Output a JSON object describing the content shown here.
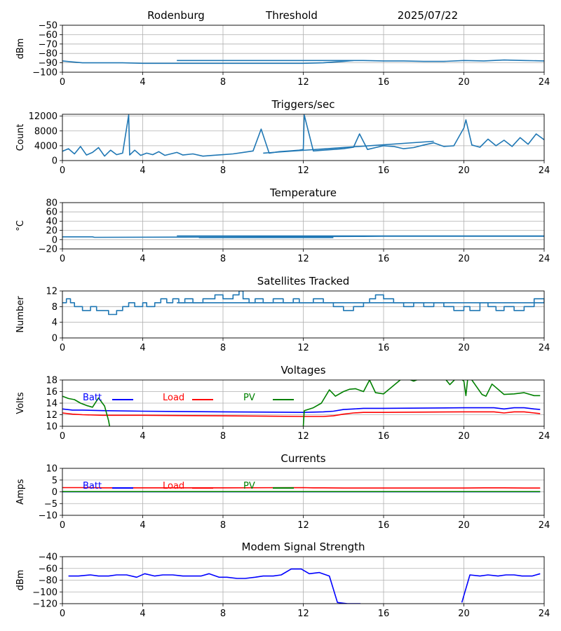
{
  "header": {
    "station": "Rodenburg",
    "mode": "Threshold",
    "date": "2025/07/22"
  },
  "chart_data": [
    {
      "id": "threshold",
      "type": "line",
      "title": "",
      "xlabel": "",
      "ylabel": "dBm",
      "xlim": [
        0,
        24
      ],
      "ylim": [
        -100,
        -50
      ],
      "grid": true,
      "xticks": [
        "0",
        "4",
        "8",
        "12",
        "16",
        "20",
        "24"
      ],
      "yticks": [
        "−100",
        "−90",
        "−80",
        "−70",
        "−60",
        "−50"
      ],
      "series": [
        {
          "color": "#1f77b4",
          "x": [
            0,
            0.5,
            1,
            2,
            3,
            4,
            5,
            6,
            7,
            8,
            9,
            10,
            11,
            12,
            13,
            14,
            14.5,
            15,
            16,
            17,
            18,
            19,
            20,
            21,
            22,
            23,
            24
          ],
          "y": [
            -88,
            -89,
            -90,
            -90,
            -90,
            -90.5,
            -90.5,
            -90.5,
            -90.5,
            -90.5,
            -90.5,
            -90.5,
            -90.5,
            -90.5,
            -90,
            -88.5,
            -87.5,
            -87.5,
            -88,
            -88,
            -88.5,
            -88.5,
            -87.5,
            -88,
            -87,
            -87.5,
            -88
          ]
        },
        {
          "color": "#1f77b4",
          "x": [
            5.7,
            14.5
          ],
          "y": [
            -87.5,
            -87.5
          ]
        }
      ]
    },
    {
      "id": "triggers",
      "type": "line",
      "title": "Triggers/sec",
      "xlabel": "",
      "ylabel": "Count",
      "xlim": [
        0,
        24
      ],
      "ylim": [
        0,
        12500
      ],
      "grid": true,
      "xticks": [
        "0",
        "4",
        "8",
        "12",
        "16",
        "20",
        "24"
      ],
      "yticks": [
        "0",
        "4000",
        "8000",
        "12000"
      ],
      "series": [
        {
          "color": "#1f77b4",
          "x": [
            0,
            0.3,
            0.6,
            0.9,
            1.2,
            1.5,
            1.8,
            2.1,
            2.4,
            2.7,
            3.0,
            3.3,
            3.35,
            3.6,
            3.9,
            4.2,
            4.5,
            4.8,
            5.1,
            5.4,
            5.7,
            6.0,
            6.5,
            7.0,
            7.5,
            8.0,
            8.5,
            9.0,
            9.5,
            9.9,
            10.3,
            10.8,
            11.3,
            11.8,
            12.0,
            12.05,
            12.5,
            13.0,
            13.5,
            14.0,
            14.5,
            14.8,
            15.2,
            15.6,
            16.0,
            16.5,
            17.0,
            17.5,
            18.0,
            18.5,
            19.0,
            19.5,
            20.0,
            20.1,
            20.4,
            20.8,
            21.2,
            21.6,
            22.0,
            22.4,
            22.8,
            23.2,
            23.6,
            24
          ],
          "y": [
            2500,
            3200,
            1800,
            3800,
            1500,
            2200,
            3500,
            1200,
            2800,
            1600,
            2000,
            12300,
            1500,
            2800,
            1400,
            2000,
            1600,
            2400,
            1400,
            1800,
            2200,
            1500,
            1800,
            1200,
            1400,
            1600,
            1800,
            2200,
            2600,
            8500,
            2000,
            2400,
            2600,
            2800,
            3000,
            12300,
            2600,
            2800,
            3000,
            3200,
            3600,
            7200,
            3000,
            3500,
            4000,
            3800,
            3200,
            3500,
            4200,
            4800,
            3800,
            4000,
            8800,
            11000,
            4200,
            3600,
            5800,
            4000,
            5500,
            3800,
            6200,
            4400,
            7200,
            5600
          ]
        },
        {
          "color": "#1f77b4",
          "x": [
            10,
            18.5
          ],
          "y": [
            2000,
            5200
          ]
        }
      ]
    },
    {
      "id": "temperature",
      "type": "line",
      "title": "Temperature",
      "xlabel": "",
      "ylabel": "°C",
      "xlim": [
        0,
        24
      ],
      "ylim": [
        -20,
        80
      ],
      "grid": true,
      "xticks": [
        "0",
        "4",
        "8",
        "12",
        "16",
        "20",
        "24"
      ],
      "yticks": [
        "−20",
        "0",
        "20",
        "40",
        "60",
        "80"
      ],
      "series": [
        {
          "color": "#1f77b4",
          "x": [
            0,
            1.5,
            1.6,
            6,
            10,
            12,
            15,
            16,
            20,
            24
          ],
          "y": [
            6,
            6,
            5,
            5.5,
            6,
            6.5,
            7,
            7.5,
            7.5,
            7.5
          ]
        },
        {
          "color": "#1f77b4",
          "x": [
            5.7,
            24
          ],
          "y": [
            8,
            8
          ]
        },
        {
          "color": "#1f77b4",
          "x": [
            6.8,
            13.5
          ],
          "y": [
            4.5,
            4.5
          ]
        }
      ]
    },
    {
      "id": "satellites",
      "type": "line",
      "title": "Satellites Tracked",
      "xlabel": "",
      "ylabel": "Number",
      "xlim": [
        0,
        24
      ],
      "ylim": [
        0,
        12
      ],
      "grid": true,
      "xticks": [
        "0",
        "4",
        "8",
        "12",
        "16",
        "20",
        "24"
      ],
      "yticks": [
        "0",
        "4",
        "8",
        "12"
      ],
      "series": [
        {
          "color": "#1f77b4",
          "step": true,
          "x": [
            0,
            0.2,
            0.4,
            0.6,
            1.0,
            1.4,
            1.7,
            2.0,
            2.3,
            2.7,
            3.0,
            3.3,
            3.6,
            3.9,
            4.0,
            4.2,
            4.6,
            4.9,
            5.2,
            5.5,
            5.8,
            6.1,
            6.5,
            7.0,
            7.6,
            8.0,
            8.5,
            8.8,
            9.0,
            9.3,
            9.6,
            10.0,
            10.5,
            11.0,
            11.5,
            11.8,
            12.5,
            13.0,
            13.5,
            14.0,
            14.5,
            15.0,
            15.3,
            15.6,
            16.0,
            16.5,
            17.0,
            17.5,
            18.0,
            18.5,
            19.0,
            19.5,
            20.0,
            20.3,
            20.8,
            21.2,
            21.6,
            22.0,
            22.5,
            23.0,
            23.5,
            24
          ],
          "y": [
            9,
            10,
            9,
            8,
            7,
            8,
            7,
            7,
            6,
            7,
            8,
            9,
            8,
            8,
            9,
            8,
            9,
            10,
            9,
            10,
            9,
            10,
            9,
            10,
            11,
            10,
            11,
            12,
            10,
            9,
            10,
            9,
            10,
            9,
            10,
            9,
            10,
            9,
            8,
            7,
            8,
            9,
            10,
            11,
            10,
            9,
            8,
            9,
            8,
            9,
            8,
            7,
            8,
            7,
            9,
            8,
            7,
            8,
            7,
            8,
            10,
            9
          ]
        },
        {
          "color": "#1f77b4",
          "x": [
            5.7,
            24
          ],
          "y": [
            9,
            9
          ]
        }
      ]
    },
    {
      "id": "voltages",
      "type": "line",
      "title": "Voltages",
      "xlabel": "",
      "ylabel": "Volts",
      "xlim": [
        0,
        24
      ],
      "ylim": [
        10,
        18
      ],
      "grid": true,
      "xticks": [
        "0",
        "4",
        "8",
        "12",
        "16",
        "20",
        "24"
      ],
      "yticks": [
        "10",
        "12",
        "14",
        "16",
        "18"
      ],
      "legend": [
        "Batt",
        "Load",
        "PV"
      ],
      "series": [
        {
          "name": "Batt",
          "color": "#0000ff",
          "x": [
            0,
            0.5,
            1,
            2,
            4,
            8,
            12,
            13,
            13.5,
            14,
            14.5,
            15,
            16,
            20,
            21.5,
            22,
            22.5,
            23,
            23.5,
            23.8
          ],
          "y": [
            13.0,
            12.8,
            12.8,
            12.7,
            12.6,
            12.5,
            12.4,
            12.5,
            12.6,
            12.9,
            13.0,
            13.1,
            13.1,
            13.2,
            13.2,
            13.0,
            13.2,
            13.2,
            13.0,
            12.9
          ]
        },
        {
          "name": "Load",
          "color": "#ff0000",
          "x": [
            0,
            0.5,
            1,
            2,
            4,
            8,
            12,
            13,
            13.5,
            14,
            14.5,
            15,
            16,
            20,
            21.5,
            22,
            22.5,
            23,
            23.5,
            23.8
          ],
          "y": [
            12.3,
            12.1,
            12.0,
            11.9,
            11.9,
            11.8,
            11.7,
            11.7,
            11.8,
            12.1,
            12.3,
            12.4,
            12.4,
            12.5,
            12.5,
            12.3,
            12.5,
            12.5,
            12.3,
            12.2
          ]
        },
        {
          "name": "PV",
          "color": "#008000",
          "x": [
            0,
            0.3,
            0.6,
            0.9,
            1.2,
            1.5,
            1.8,
            2.1,
            2.3,
            2.35
          ],
          "y": [
            15.2,
            14.8,
            14.6,
            14.0,
            13.6,
            13.3,
            14.9,
            13.5,
            11.0,
            10.0
          ]
        },
        {
          "name": "PV",
          "color": "#008000",
          "x": [
            12.0,
            12.05,
            12.5,
            12.9,
            13.3,
            13.6,
            14.0,
            14.3,
            14.6,
            15.0,
            15.3,
            15.6,
            16.0,
            17.0,
            17.5,
            18.0,
            18.5,
            19.0,
            19.3,
            19.7,
            20.0,
            20.1,
            20.2,
            20.4,
            20.6,
            20.9,
            21.1,
            21.4,
            22.0,
            22.5,
            23.0,
            23.5,
            23.8
          ],
          "y": [
            10,
            12.7,
            13.2,
            14.0,
            16.3,
            15.2,
            16.0,
            16.4,
            16.5,
            16.0,
            18.0,
            15.8,
            15.6,
            18.5,
            17.8,
            18.5,
            18.3,
            18.5,
            17.2,
            18.6,
            17.8,
            15.3,
            18.5,
            18.0,
            17.0,
            15.5,
            15.2,
            17.3,
            15.5,
            15.6,
            15.8,
            15.3,
            15.3
          ]
        }
      ]
    },
    {
      "id": "currents",
      "type": "line",
      "title": "Currents",
      "xlabel": "",
      "ylabel": "Amps",
      "xlim": [
        0,
        24
      ],
      "ylim": [
        -10,
        10
      ],
      "grid": true,
      "xticks": [
        "0",
        "4",
        "8",
        "12",
        "16",
        "20",
        "24"
      ],
      "yticks": [
        "−10",
        "−5",
        "0",
        "5",
        "10"
      ],
      "legend": [
        "Batt",
        "Load",
        "PV"
      ],
      "series": [
        {
          "name": "Batt",
          "color": "#0000ff",
          "x": [
            0,
            23.8
          ],
          "y": [
            0,
            0
          ]
        },
        {
          "name": "Load",
          "color": "#ff0000",
          "x": [
            0,
            1,
            2,
            4,
            8,
            12,
            12.5,
            13,
            14,
            16,
            20,
            21,
            22,
            23,
            23.8
          ],
          "y": [
            1.8,
            1.8,
            1.7,
            1.7,
            1.7,
            1.8,
            1.7,
            1.7,
            1.6,
            1.6,
            1.6,
            1.7,
            1.7,
            1.6,
            1.6
          ]
        },
        {
          "name": "PV",
          "color": "#008000",
          "x": [
            0,
            23.8
          ],
          "y": [
            0.1,
            0.1
          ]
        }
      ]
    },
    {
      "id": "modem",
      "type": "line",
      "title": "Modem Signal Strength",
      "xlabel": "",
      "ylabel": "dBm",
      "xlim": [
        0,
        24
      ],
      "ylim": [
        -120,
        -40
      ],
      "grid": true,
      "xticks": [
        "0",
        "4",
        "8",
        "12",
        "16",
        "20",
        "24"
      ],
      "yticks": [
        "−120",
        "−100",
        "−80",
        "−60",
        "−40"
      ],
      "series": [
        {
          "color": "#0000ff",
          "x": [
            0.3,
            0.8,
            1.4,
            1.8,
            2.3,
            2.7,
            3.2,
            3.7,
            4.1,
            4.6,
            5.0,
            5.5,
            6.0,
            6.4,
            6.9,
            7.3,
            7.8,
            8.2,
            8.7,
            9.1,
            9.6,
            10.0,
            10.5,
            10.9,
            11.4,
            11.9,
            12.3,
            12.8,
            13.3,
            13.7,
            14.2,
            14.6,
            14.85
          ],
          "y": [
            -73,
            -73,
            -71,
            -73,
            -73,
            -71,
            -71,
            -75,
            -69,
            -73,
            -71,
            -71,
            -73,
            -73,
            -73,
            -69,
            -75,
            -75,
            -77,
            -77,
            -75,
            -73,
            -73,
            -71,
            -61,
            -61,
            -69,
            -67,
            -73,
            -118,
            -120,
            -120,
            -120
          ]
        },
        {
          "color": "#0000ff",
          "x": [
            19.9,
            20.3,
            20.8,
            21.2,
            21.7,
            22.1,
            22.5,
            22.9,
            23.4,
            23.8
          ],
          "y": [
            -118,
            -71,
            -73,
            -71,
            -73,
            -71,
            -71,
            -73,
            -73,
            -69
          ]
        }
      ]
    }
  ]
}
